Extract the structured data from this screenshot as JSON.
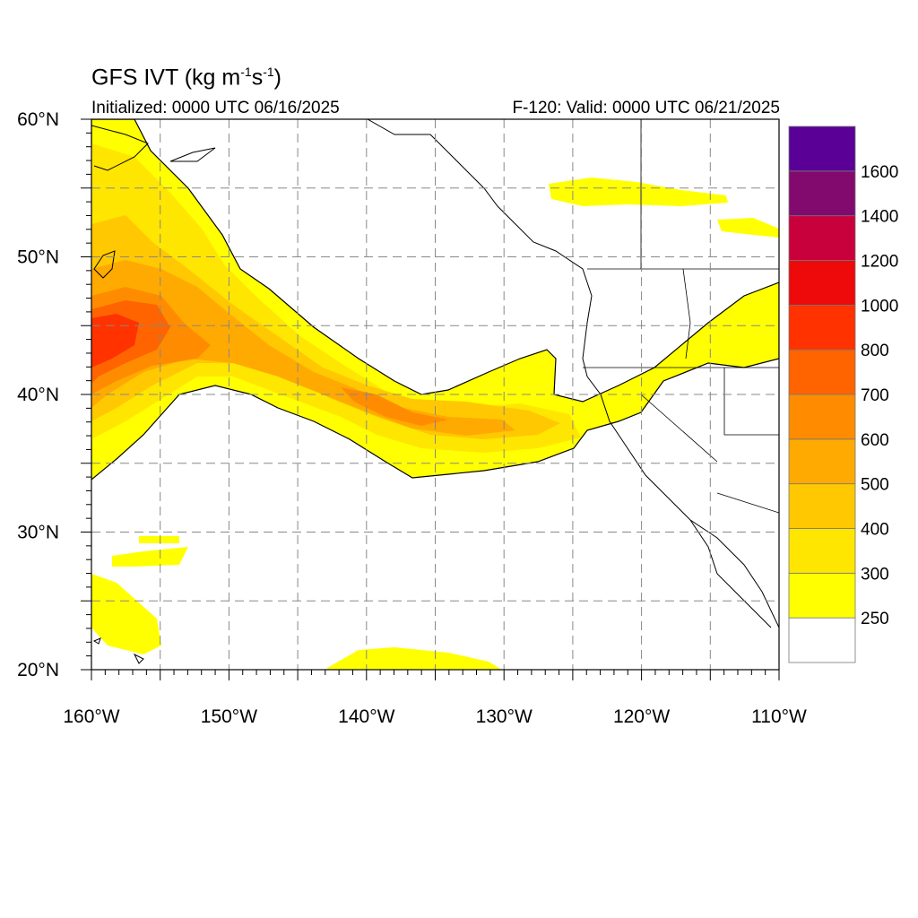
{
  "title": {
    "prefix": "GFS IVT (kg m",
    "exp1": "-1",
    "mid": "s",
    "exp2": "-1",
    "suffix": ")"
  },
  "initialized_text": "Initialized: 0000 UTC 06/16/2025",
  "valid_text": "F-120: Valid: 0000 UTC 06/21/2025",
  "map": {
    "projection": "cylindrical-equidistant",
    "lon_range": [
      -160,
      -110
    ],
    "lat_range": [
      20,
      60
    ],
    "lon_ticks": [
      {
        "lon": -160,
        "label": "160°W"
      },
      {
        "lon": -150,
        "label": "150°W"
      },
      {
        "lon": -140,
        "label": "140°W"
      },
      {
        "lon": -130,
        "label": "130°W"
      },
      {
        "lon": -120,
        "label": "120°W"
      },
      {
        "lon": -110,
        "label": "110°W"
      }
    ],
    "lat_ticks": [
      {
        "lat": 60,
        "label": "60°N"
      },
      {
        "lat": 50,
        "label": "50°N"
      },
      {
        "lat": 40,
        "label": "40°N"
      },
      {
        "lat": 30,
        "label": "30°N"
      },
      {
        "lat": 20,
        "label": "20°N"
      }
    ],
    "grid": "dashed every 5°"
  },
  "colorbar": {
    "labels": [
      "250",
      "300",
      "400",
      "500",
      "600",
      "700",
      "800",
      "1000",
      "1200",
      "1400",
      "1600"
    ],
    "colors": [
      "#ffffff",
      "#ffff00",
      "#ffe600",
      "#ffc800",
      "#ffaa00",
      "#ff8c00",
      "#ff6400",
      "#ff3200",
      "#ee0a0a",
      "#c8003c",
      "#820a6e",
      "#5a0096"
    ]
  },
  "features": {
    "river_main": "atmospheric river from central Pacific (~40-48N,160W) arcing NE then SE to California coast (~37-40N,122W) then inland",
    "max_region": "core 800-1000 near 160-155W, 40-46N"
  }
}
